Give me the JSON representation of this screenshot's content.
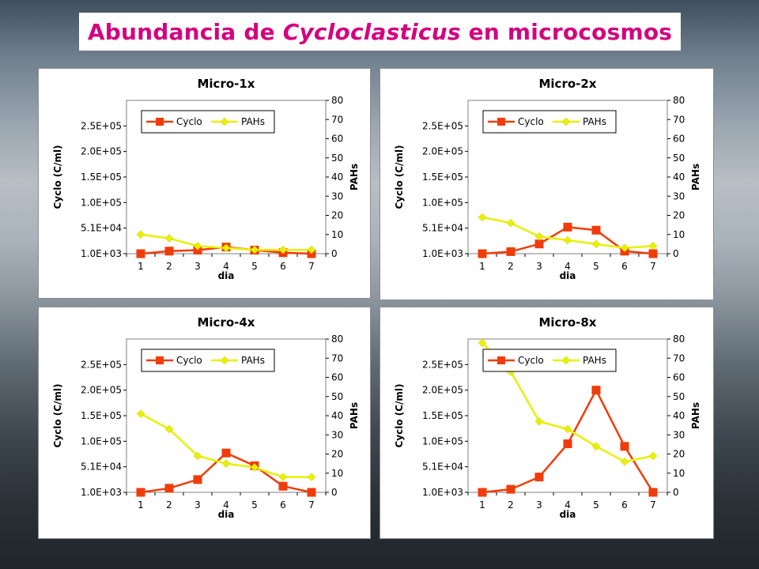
{
  "title": {
    "prefix": "Abundancia de ",
    "italic": "Cycloclasticus",
    "suffix": " en microcosmos"
  },
  "colors": {
    "title": "#d4007f",
    "cyclo": "#f03c0a",
    "pahs": "#e8f000"
  },
  "chart_data": [
    {
      "type": "line",
      "title": "Micro-1x",
      "xlabel": "dia",
      "ylabel": "Cyclo (C/ml)",
      "y2label": "PAHs",
      "categories": [
        "1",
        "2",
        "3",
        "4",
        "5",
        "6",
        "7"
      ],
      "y_ticks": [
        "1.0E+03",
        "5.1E+04",
        "1.0E+05",
        "1.5E+05",
        "2.0E+05",
        "2.5E+05"
      ],
      "y2_ticks": [
        "0",
        "10",
        "20",
        "30",
        "40",
        "50",
        "60",
        "70",
        "80"
      ],
      "ylim": [
        1000,
        301000
      ],
      "y2lim": [
        0,
        80
      ],
      "legend_position": "top",
      "grid": false,
      "series": [
        {
          "name": "Cyclo",
          "axis": "left",
          "values": [
            1000,
            6000,
            8000,
            14000,
            8000,
            3000,
            1000
          ]
        },
        {
          "name": "PAHs",
          "axis": "right",
          "values": [
            10,
            8,
            4,
            3,
            2,
            2,
            2
          ]
        }
      ]
    },
    {
      "type": "line",
      "title": "Micro-2x",
      "xlabel": "dia",
      "ylabel": "Cyclo (C/ml)",
      "y2label": "PAHs",
      "categories": [
        "1",
        "2",
        "3",
        "4",
        "5",
        "6",
        "7"
      ],
      "y_ticks": [
        "1.0E+03",
        "5.1E+04",
        "1.0E+05",
        "1.5E+05",
        "2.0E+05",
        "2.5E+05"
      ],
      "y2_ticks": [
        "0",
        "10",
        "20",
        "30",
        "40",
        "50",
        "60",
        "70",
        "80"
      ],
      "ylim": [
        1000,
        301000
      ],
      "y2lim": [
        0,
        80
      ],
      "legend_position": "top",
      "grid": false,
      "series": [
        {
          "name": "Cyclo",
          "axis": "left",
          "values": [
            1000,
            5000,
            20000,
            53000,
            47000,
            6000,
            1000
          ]
        },
        {
          "name": "PAHs",
          "axis": "right",
          "values": [
            19,
            16,
            9,
            7,
            5,
            3,
            4
          ]
        }
      ]
    },
    {
      "type": "line",
      "title": "Micro-4x",
      "xlabel": "dia",
      "ylabel": "Cyclo (C/ml)",
      "y2label": "PAHs",
      "categories": [
        "1",
        "2",
        "3",
        "4",
        "5",
        "6",
        "7"
      ],
      "y_ticks": [
        "1.0E+03",
        "5.1E+04",
        "1.0E+05",
        "1.5E+05",
        "2.0E+05",
        "2.5E+05"
      ],
      "y2_ticks": [
        "0",
        "10",
        "20",
        "30",
        "40",
        "50",
        "60",
        "70",
        "80"
      ],
      "ylim": [
        1000,
        301000
      ],
      "y2lim": [
        0,
        80
      ],
      "legend_position": "top",
      "grid": false,
      "series": [
        {
          "name": "Cyclo",
          "axis": "left",
          "values": [
            1000,
            9000,
            26000,
            78000,
            53000,
            13000,
            1000
          ]
        },
        {
          "name": "PAHs",
          "axis": "right",
          "values": [
            41,
            33,
            19,
            15,
            13,
            8,
            8
          ]
        }
      ]
    },
    {
      "type": "line",
      "title": "Micro-8x",
      "xlabel": "dia",
      "ylabel": "Cyclo (C/ml)",
      "y2label": "PAHs",
      "categories": [
        "1",
        "2",
        "3",
        "4",
        "5",
        "6",
        "7"
      ],
      "y_ticks": [
        "1.0E+03",
        "5.1E+04",
        "1.0E+05",
        "1.5E+05",
        "2.0E+05",
        "2.5E+05"
      ],
      "y2_ticks": [
        "0",
        "10",
        "20",
        "30",
        "40",
        "50",
        "60",
        "70",
        "80"
      ],
      "ylim": [
        1000,
        301000
      ],
      "y2lim": [
        0,
        80
      ],
      "legend_position": "top",
      "grid": false,
      "series": [
        {
          "name": "Cyclo",
          "axis": "left",
          "values": [
            1000,
            7000,
            31000,
            96000,
            201000,
            91000,
            1000
          ]
        },
        {
          "name": "PAHs",
          "axis": "right",
          "values": [
            78,
            63,
            37,
            33,
            24,
            16,
            19
          ]
        }
      ]
    }
  ]
}
